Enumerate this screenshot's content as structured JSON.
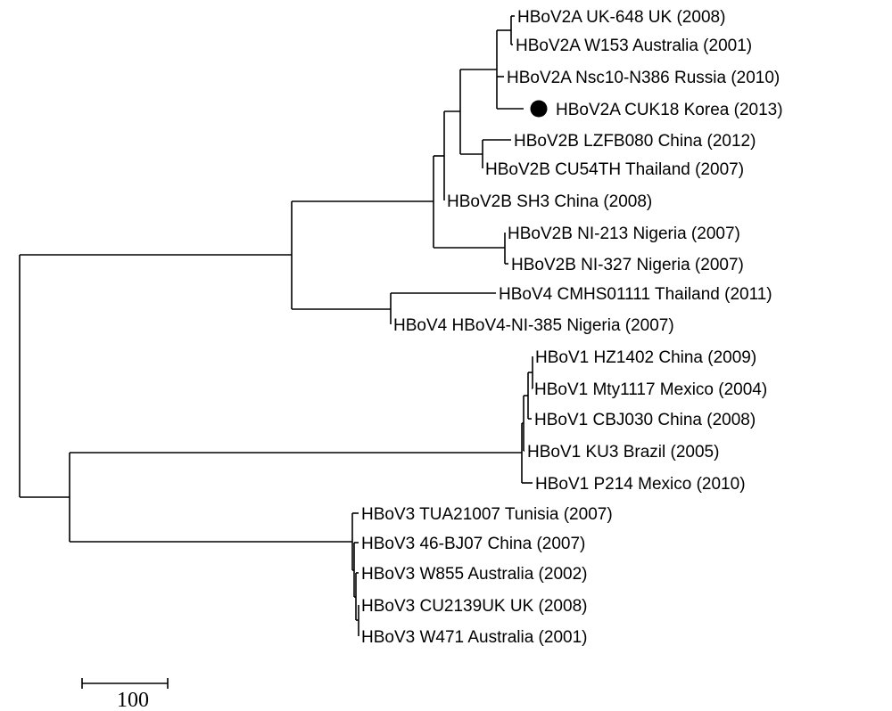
{
  "tree": {
    "leaves": [
      "HBoV2A UK-648 UK (2008)",
      "HBoV2A W153 Australia (2001)",
      "HBoV2A Nsc10-N386 Russia (2010)",
      "HBoV2A CUK18 Korea (2013)",
      "HBoV2B LZFB080 China (2012)",
      "HBoV2B CU54TH Thailand (2007)",
      "HBoV2B SH3 China (2008)",
      "HBoV2B NI-213 Nigeria (2007)",
      "HBoV2B NI-327 Nigeria (2007)",
      "HBoV4 CMHS01111 Thailand (2011)",
      "HBoV4 HBoV4-NI-385 Nigeria (2007)",
      "HBoV1 HZ1402 China (2009)",
      "HBoV1 Mty1117 Mexico (2004)",
      "HBoV1 CBJ030 China (2008)",
      "HBoV1 KU3 Brazil (2005)",
      "HBoV1 P214 Mexico (2010)",
      "HBoV3 TUA21007 Tunisia (2007)",
      "HBoV3 46-BJ07 China (2007)",
      "HBoV3 W855 Australia (2002)",
      "HBoV3 CU2139UK UK (2008)",
      "HBoV3 W471 Australia (2001)"
    ],
    "highlighted_leaf": "HBoV2A CUK18 Korea (2013)",
    "marker_color": "#000000",
    "line_color": "#000000"
  },
  "scale_bar": {
    "label": "100"
  }
}
